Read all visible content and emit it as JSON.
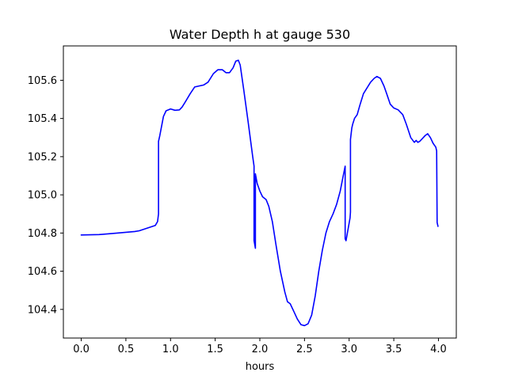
{
  "chart_data": {
    "type": "line",
    "title": "Water Depth h at gauge 530",
    "xlabel": "hours",
    "ylabel": "",
    "xlim": [
      -0.2,
      4.2
    ],
    "ylim": [
      104.25,
      105.78
    ],
    "xticks": [
      0.0,
      0.5,
      1.0,
      1.5,
      2.0,
      2.5,
      3.0,
      3.5,
      4.0
    ],
    "xtick_labels": [
      "0.0",
      "0.5",
      "1.0",
      "1.5",
      "2.0",
      "2.5",
      "3.0",
      "3.5",
      "4.0"
    ],
    "yticks": [
      104.4,
      104.6,
      104.8,
      105.0,
      105.2,
      105.4,
      105.6
    ],
    "ytick_labels": [
      "104.4",
      "104.6",
      "104.8",
      "105.0",
      "105.2",
      "105.4",
      "105.6"
    ],
    "grid": false,
    "legend": "none",
    "series": [
      {
        "color": "#0000ff",
        "points": [
          [
            0.0,
            104.79
          ],
          [
            0.2,
            104.792
          ],
          [
            0.4,
            104.8
          ],
          [
            0.6,
            104.808
          ],
          [
            0.65,
            104.812
          ],
          [
            0.75,
            104.827
          ],
          [
            0.83,
            104.84
          ],
          [
            0.855,
            104.86
          ],
          [
            0.865,
            104.9
          ],
          [
            0.865,
            105.28
          ],
          [
            0.88,
            105.31
          ],
          [
            0.9,
            105.36
          ],
          [
            0.92,
            105.41
          ],
          [
            0.95,
            105.44
          ],
          [
            1.0,
            105.45
          ],
          [
            1.05,
            105.443
          ],
          [
            1.1,
            105.445
          ],
          [
            1.13,
            105.46
          ],
          [
            1.17,
            105.49
          ],
          [
            1.22,
            105.53
          ],
          [
            1.27,
            105.565
          ],
          [
            1.32,
            105.57
          ],
          [
            1.37,
            105.575
          ],
          [
            1.42,
            105.59
          ],
          [
            1.48,
            105.635
          ],
          [
            1.53,
            105.655
          ],
          [
            1.58,
            105.655
          ],
          [
            1.62,
            105.64
          ],
          [
            1.66,
            105.64
          ],
          [
            1.7,
            105.665
          ],
          [
            1.73,
            105.7
          ],
          [
            1.76,
            105.705
          ],
          [
            1.78,
            105.68
          ],
          [
            1.82,
            105.55
          ],
          [
            1.87,
            105.38
          ],
          [
            1.92,
            105.2
          ],
          [
            1.935,
            105.15
          ],
          [
            1.935,
            104.76
          ],
          [
            1.95,
            104.72
          ],
          [
            1.95,
            105.11
          ],
          [
            1.97,
            105.06
          ],
          [
            2.0,
            105.02
          ],
          [
            2.03,
            104.99
          ],
          [
            2.07,
            104.975
          ],
          [
            2.1,
            104.94
          ],
          [
            2.14,
            104.86
          ],
          [
            2.18,
            104.74
          ],
          [
            2.23,
            104.6
          ],
          [
            2.28,
            104.49
          ],
          [
            2.31,
            104.44
          ],
          [
            2.34,
            104.43
          ],
          [
            2.38,
            104.39
          ],
          [
            2.42,
            104.35
          ],
          [
            2.46,
            104.32
          ],
          [
            2.5,
            104.315
          ],
          [
            2.54,
            104.325
          ],
          [
            2.58,
            104.37
          ],
          [
            2.62,
            104.47
          ],
          [
            2.66,
            104.6
          ],
          [
            2.7,
            104.71
          ],
          [
            2.74,
            104.8
          ],
          [
            2.78,
            104.86
          ],
          [
            2.82,
            104.9
          ],
          [
            2.86,
            104.95
          ],
          [
            2.9,
            105.02
          ],
          [
            2.93,
            105.09
          ],
          [
            2.955,
            105.15
          ],
          [
            2.955,
            104.77
          ],
          [
            2.965,
            104.76
          ],
          [
            3.01,
            104.88
          ],
          [
            3.015,
            104.91
          ],
          [
            3.015,
            105.29
          ],
          [
            3.03,
            105.35
          ],
          [
            3.04,
            105.37
          ],
          [
            3.06,
            105.4
          ],
          [
            3.09,
            105.42
          ],
          [
            3.12,
            105.47
          ],
          [
            3.16,
            105.53
          ],
          [
            3.2,
            105.56
          ],
          [
            3.24,
            105.59
          ],
          [
            3.28,
            105.61
          ],
          [
            3.31,
            105.62
          ],
          [
            3.35,
            105.61
          ],
          [
            3.39,
            105.57
          ],
          [
            3.42,
            105.53
          ],
          [
            3.46,
            105.475
          ],
          [
            3.5,
            105.455
          ],
          [
            3.55,
            105.445
          ],
          [
            3.6,
            105.42
          ],
          [
            3.64,
            105.37
          ],
          [
            3.69,
            105.3
          ],
          [
            3.73,
            105.275
          ],
          [
            3.75,
            105.285
          ],
          [
            3.77,
            105.275
          ],
          [
            3.79,
            105.28
          ],
          [
            3.82,
            105.295
          ],
          [
            3.85,
            105.31
          ],
          [
            3.88,
            105.32
          ],
          [
            3.91,
            105.3
          ],
          [
            3.94,
            105.27
          ],
          [
            3.97,
            105.25
          ],
          [
            3.98,
            105.23
          ],
          [
            3.985,
            104.855
          ],
          [
            3.995,
            104.835
          ]
        ]
      }
    ]
  }
}
